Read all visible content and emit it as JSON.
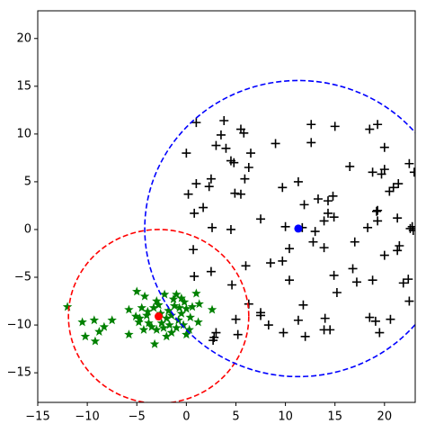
{
  "chart_data": {
    "type": "scatter",
    "xlim": [
      -15,
      23.1
    ],
    "ylim": [
      -18.1,
      22.9
    ],
    "xticks": [
      {
        "value": -15,
        "label": "−15"
      },
      {
        "value": -10,
        "label": "−10"
      },
      {
        "value": -5,
        "label": "−5"
      },
      0,
      5,
      10,
      15,
      20
    ],
    "yticks": [
      {
        "value": -15,
        "label": "−15"
      },
      {
        "value": -10,
        "label": "−10"
      },
      {
        "value": -5,
        "label": "−5"
      },
      0,
      5,
      10,
      15,
      20
    ],
    "series": [
      {
        "color": "#000000",
        "marker": "plus",
        "x": [
          1,
          3.8,
          5.5,
          5.8,
          3.5,
          3,
          4,
          0,
          6.5,
          4.5,
          4.8,
          6.3,
          2.5,
          5.9,
          1,
          2.3,
          5.5,
          4.9,
          0.2,
          1.7,
          0.8,
          2.6,
          4.5,
          7.5,
          6,
          4.6,
          2.5,
          0.8,
          0.7,
          6.3,
          7.5,
          7.5,
          5,
          8.3,
          5.2,
          3,
          2.8,
          2.7,
          9,
          12.6,
          12.6,
          15,
          16.5,
          11.3,
          9.7,
          11.9,
          13.3,
          14.3,
          14.8,
          14.3,
          14.9,
          13.9,
          10,
          11.7,
          13,
          12.8,
          13.9,
          10.4,
          9.7,
          8.5,
          10.4,
          11.8,
          14.9,
          15.2,
          17.2,
          16.8,
          17,
          11.3,
          12,
          14,
          13.9,
          14.5,
          9.8,
          18.5,
          19.3,
          20,
          18.8,
          19.7,
          20,
          20.5,
          20.9,
          21.4,
          22.5,
          23,
          19.2,
          19.3,
          18.3,
          19.3,
          21.3,
          22.6,
          22.8,
          22.9,
          20,
          21.3,
          21.5,
          22.4,
          21.9,
          22.5,
          18.8,
          18.5,
          19.1,
          19.5,
          20.6
        ],
        "y": [
          11.2,
          11.4,
          10.5,
          10.1,
          9.9,
          8.8,
          8.5,
          8,
          8,
          7.2,
          7,
          6.5,
          5.3,
          5.3,
          4.8,
          4.5,
          3.7,
          3.8,
          3.7,
          2.3,
          1.7,
          0.2,
          0,
          1.1,
          -3.8,
          -5.8,
          -4.4,
          -4.9,
          -2.1,
          -7.8,
          -8.7,
          -9,
          -9.4,
          -10,
          -11,
          -10.8,
          -11.3,
          -11.6,
          9,
          11,
          9.1,
          10.8,
          6.6,
          5,
          4.4,
          2.6,
          3.2,
          3,
          3.5,
          1.7,
          1.3,
          0.9,
          0.3,
          0.2,
          -0.2,
          -1.3,
          -1.9,
          -2,
          -3.3,
          -3.5,
          -5.3,
          -7.9,
          -4.8,
          -6.6,
          -5.5,
          -4.1,
          -1.3,
          -9.5,
          -11.2,
          -9.3,
          -10.5,
          -10.5,
          -10.8,
          10.5,
          11,
          8.6,
          6,
          5.8,
          6.3,
          4,
          4.4,
          4.8,
          6.9,
          6,
          1.9,
          2,
          0.2,
          0.9,
          1.2,
          0.1,
          0.3,
          -0.1,
          -2.7,
          -2.2,
          -1.7,
          -5.2,
          -5.6,
          -7.5,
          -5.3,
          -9.2,
          -9.6,
          -10.8,
          -9.4
        ]
      },
      {
        "color": "#008000",
        "marker": "star",
        "x": [
          -12,
          -10.5,
          -10.2,
          -9.3,
          -9.2,
          -8.8,
          -8.3,
          -7.5,
          -5.8,
          -5.8,
          -5,
          -4.2,
          1,
          2.6,
          1.3,
          0.4,
          1.2,
          0.3,
          0,
          -3.2,
          -2,
          -1.5,
          -1,
          -0.5,
          -2.2,
          -3,
          -4.5,
          -4.7,
          -4,
          -3.8,
          -3.5,
          -3,
          -2.5,
          -2,
          -1.8,
          -1.5,
          -1.2,
          -0.8,
          -0.5,
          -0.3,
          0,
          -4.3,
          -3.3,
          -2.8,
          -2.3,
          -1.7,
          -1,
          -0.7,
          -4.8,
          -3.9,
          -1.3,
          -2.6,
          -5.1,
          0.6,
          -0.2
        ],
        "y": [
          -8.1,
          -9.7,
          -11.2,
          -9.5,
          -11.7,
          -10.7,
          -10.2,
          -9.5,
          -8.4,
          -11,
          -6.5,
          -7,
          -6.7,
          -8.4,
          -7.8,
          -9.2,
          -9.7,
          -10.5,
          -11,
          -12,
          -11.2,
          -10.8,
          -6.8,
          -7.2,
          -6.8,
          -7.5,
          -8.2,
          -9.3,
          -9,
          -9.8,
          -10.2,
          -10.5,
          -9.8,
          -9.3,
          -8.5,
          -9,
          -8,
          -9.5,
          -8.8,
          -10,
          -8.3,
          -10.5,
          -8.2,
          -7.9,
          -10.3,
          -10,
          -10.3,
          -8.2,
          -9.7,
          -8.6,
          -7.3,
          -8.8,
          -9.1,
          -8.1,
          -7.6
        ]
      },
      {
        "color": "#ff0000",
        "marker": "dot",
        "x": [
          -2.8
        ],
        "y": [
          -9.1
        ]
      },
      {
        "color": "#0000ff",
        "marker": "dot",
        "x": [
          11.3
        ],
        "y": [
          0.1
        ]
      }
    ],
    "circles": [
      {
        "center": [
          -2.8,
          -9.1
        ],
        "radius": 9.1,
        "color": "#ff0000",
        "linestyle": "dashed"
      },
      {
        "center": [
          11.3,
          0.1
        ],
        "radius": 15.5,
        "color": "#0000ff",
        "linestyle": "dashed"
      }
    ]
  }
}
